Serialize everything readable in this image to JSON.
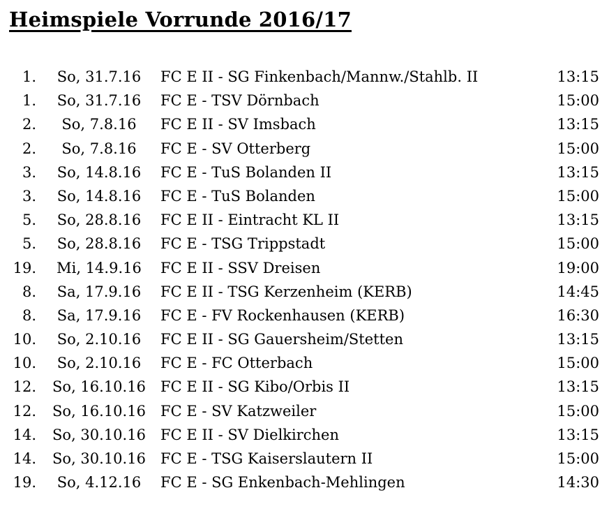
{
  "title": "Heimspiele Vorrunde 2016/17",
  "games": [
    {
      "round": "1.",
      "date": "So, 31.7.16",
      "match": "FC E II - SG Finkenbach/Mannw./Stahlb. II",
      "time": "13:15"
    },
    {
      "round": "1.",
      "date": "So, 31.7.16",
      "match": "FC E - TSV Dörnbach",
      "time": "15:00"
    },
    {
      "round": "2.",
      "date": "So, 7.8.16",
      "match": "FC E II - SV Imsbach",
      "time": "13:15"
    },
    {
      "round": "2.",
      "date": "So, 7.8.16",
      "match": "FC E - SV Otterberg",
      "time": "15:00"
    },
    {
      "round": "3.",
      "date": "So, 14.8.16",
      "match": "FC E - TuS Bolanden II",
      "time": "13:15"
    },
    {
      "round": "3.",
      "date": "So, 14.8.16",
      "match": "FC E - TuS Bolanden",
      "time": "15:00"
    },
    {
      "round": "5.",
      "date": "So, 28.8.16",
      "match": "FC E II - Eintracht KL II",
      "time": "13:15"
    },
    {
      "round": "5.",
      "date": "So, 28.8.16",
      "match": "FC E - TSG Trippstadt",
      "time": "15:00"
    },
    {
      "round": "19.",
      "date": "Mi, 14.9.16",
      "match": "FC E II - SSV Dreisen",
      "time": "19:00"
    },
    {
      "round": "8.",
      "date": "Sa, 17.9.16",
      "match": "FC E II - TSG Kerzenheim (KERB)",
      "time": "14:45"
    },
    {
      "round": "8.",
      "date": "Sa, 17.9.16",
      "match": "FC E - FV Rockenhausen (KERB)",
      "time": "16:30"
    },
    {
      "round": "10.",
      "date": "So, 2.10.16",
      "match": "FC E II - SG Gauersheim/Stetten",
      "time": "13:15"
    },
    {
      "round": "10.",
      "date": "So, 2.10.16",
      "match": "FC E - FC Otterbach",
      "time": "15:00"
    },
    {
      "round": "12.",
      "date": "So, 16.10.16",
      "match": "FC E II - SG Kibo/Orbis II",
      "time": "13:15"
    },
    {
      "round": "12.",
      "date": "So, 16.10.16",
      "match": "FC E - SV Katzweiler",
      "time": "15:00"
    },
    {
      "round": "14.",
      "date": "So, 30.10.16",
      "match": "FC E II - SV Dielkirchen",
      "time": "13:15"
    },
    {
      "round": "14.",
      "date": "So, 30.10.16",
      "match": "FC E - TSG Kaiserslautern II",
      "time": "15:00"
    },
    {
      "round": "19.",
      "date": "So, 4.12.16",
      "match": "FC E - SG Enkenbach-Mehlingen",
      "time": "14:30"
    }
  ]
}
